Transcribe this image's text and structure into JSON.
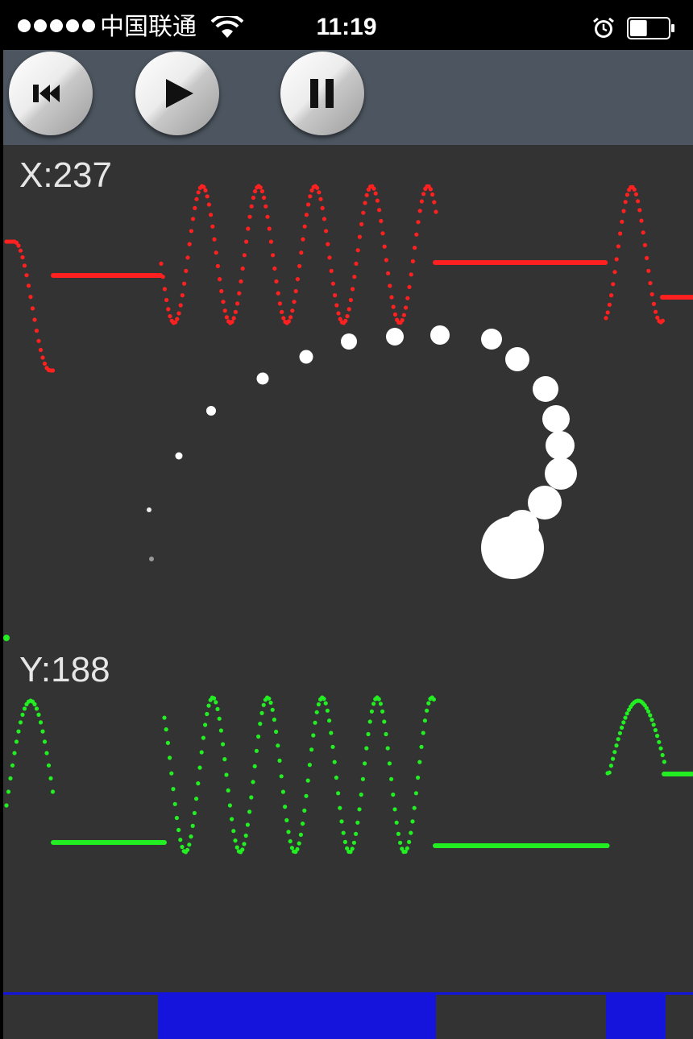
{
  "status_bar": {
    "carrier": "中国联通",
    "time": "11:19",
    "signal_bars": 5,
    "icons": [
      "signal-dots-icon",
      "wifi-icon",
      "alarm-clock-icon",
      "battery-icon"
    ],
    "battery_level": 0.45
  },
  "toolbar": {
    "buttons": [
      {
        "name": "rewind",
        "icon": "skip-back-icon"
      },
      {
        "name": "play",
        "icon": "play-icon"
      },
      {
        "name": "pause",
        "icon": "pause-icon"
      }
    ]
  },
  "readouts": {
    "x_label": "X:237",
    "y_label": "Y:188"
  },
  "colors": {
    "background": "#333333",
    "toolbar": "#4d5660",
    "x_trace": "#ff2020",
    "y_trace": "#22ee22",
    "ball": "#ffffff",
    "bottom_bar": "#1414dd"
  }
}
